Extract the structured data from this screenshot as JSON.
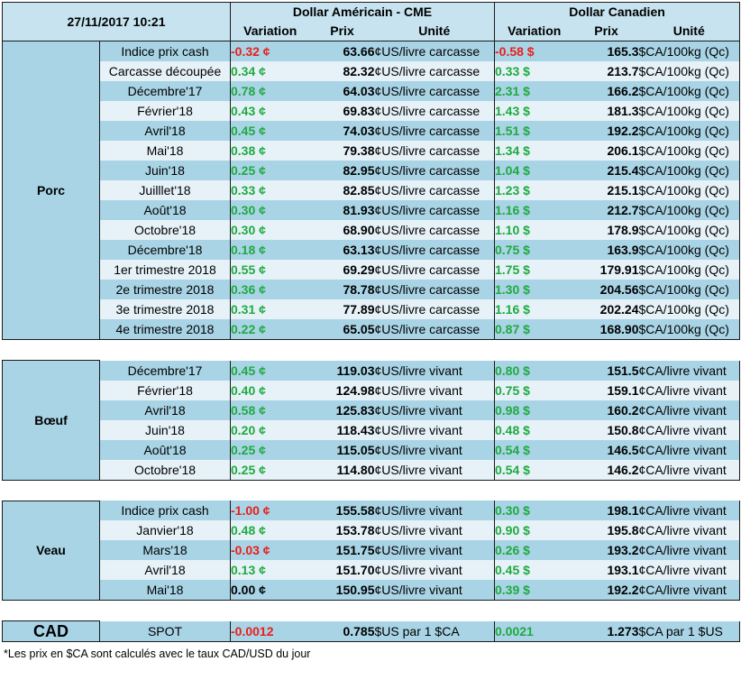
{
  "header": {
    "date": "27/11/2017 10:21",
    "usd_group": "Dollar Américain - CME",
    "cad_group": "Dollar Canadien",
    "col_variation": "Variation",
    "col_prix": "Prix",
    "col_unite": "Unité"
  },
  "sections": [
    {
      "name": "Porc",
      "rows": [
        {
          "label": "Indice prix cash",
          "usd_var": "-0.32 ¢",
          "usd_var_sign": "neg",
          "usd_price": "63.66",
          "usd_unit": "¢US/livre carcasse",
          "cad_var": "-0.58 $",
          "cad_var_sign": "neg",
          "cad_price": "165.3",
          "cad_unit": "$CA/100kg (Qc)"
        },
        {
          "label": "Carcasse découpée",
          "usd_var": "0.34 ¢",
          "usd_var_sign": "pos",
          "usd_price": "82.32",
          "usd_unit": "¢US/livre carcasse",
          "cad_var": "0.33 $",
          "cad_var_sign": "pos",
          "cad_price": "213.7",
          "cad_unit": "$CA/100kg (Qc)"
        },
        {
          "label": "Décembre'17",
          "usd_var": "0.78 ¢",
          "usd_var_sign": "pos",
          "usd_price": "64.03",
          "usd_unit": "¢US/livre carcasse",
          "cad_var": "2.31 $",
          "cad_var_sign": "pos",
          "cad_price": "166.2",
          "cad_unit": "$CA/100kg (Qc)"
        },
        {
          "label": "Février'18",
          "usd_var": "0.43 ¢",
          "usd_var_sign": "pos",
          "usd_price": "69.83",
          "usd_unit": "¢US/livre carcasse",
          "cad_var": "1.43 $",
          "cad_var_sign": "pos",
          "cad_price": "181.3",
          "cad_unit": "$CA/100kg (Qc)"
        },
        {
          "label": "Avril'18",
          "usd_var": "0.45 ¢",
          "usd_var_sign": "pos",
          "usd_price": "74.03",
          "usd_unit": "¢US/livre carcasse",
          "cad_var": "1.51 $",
          "cad_var_sign": "pos",
          "cad_price": "192.2",
          "cad_unit": "$CA/100kg (Qc)"
        },
        {
          "label": "Mai'18",
          "usd_var": "0.38 ¢",
          "usd_var_sign": "pos",
          "usd_price": "79.38",
          "usd_unit": "¢US/livre carcasse",
          "cad_var": "1.34 $",
          "cad_var_sign": "pos",
          "cad_price": "206.1",
          "cad_unit": "$CA/100kg (Qc)"
        },
        {
          "label": "Juin'18",
          "usd_var": "0.25 ¢",
          "usd_var_sign": "pos",
          "usd_price": "82.95",
          "usd_unit": "¢US/livre carcasse",
          "cad_var": "1.04 $",
          "cad_var_sign": "pos",
          "cad_price": "215.4",
          "cad_unit": "$CA/100kg (Qc)"
        },
        {
          "label": "Juilllet'18",
          "usd_var": "0.33 ¢",
          "usd_var_sign": "pos",
          "usd_price": "82.85",
          "usd_unit": "¢US/livre carcasse",
          "cad_var": "1.23 $",
          "cad_var_sign": "pos",
          "cad_price": "215.1",
          "cad_unit": "$CA/100kg (Qc)"
        },
        {
          "label": "Août'18",
          "usd_var": "0.30 ¢",
          "usd_var_sign": "pos",
          "usd_price": "81.93",
          "usd_unit": "¢US/livre carcasse",
          "cad_var": "1.16 $",
          "cad_var_sign": "pos",
          "cad_price": "212.7",
          "cad_unit": "$CA/100kg (Qc)"
        },
        {
          "label": "Octobre'18",
          "usd_var": "0.30 ¢",
          "usd_var_sign": "pos",
          "usd_price": "68.90",
          "usd_unit": "¢US/livre carcasse",
          "cad_var": "1.10 $",
          "cad_var_sign": "pos",
          "cad_price": "178.9",
          "cad_unit": "$CA/100kg (Qc)"
        },
        {
          "label": "Décembre'18",
          "usd_var": "0.18 ¢",
          "usd_var_sign": "pos",
          "usd_price": "63.13",
          "usd_unit": "¢US/livre carcasse",
          "cad_var": "0.75 $",
          "cad_var_sign": "pos",
          "cad_price": "163.9",
          "cad_unit": "$CA/100kg (Qc)"
        },
        {
          "label": "1er trimestre 2018",
          "usd_var": "0.55 ¢",
          "usd_var_sign": "pos",
          "usd_price": "69.29",
          "usd_unit": "¢US/livre carcasse",
          "cad_var": "1.75 $",
          "cad_var_sign": "pos",
          "cad_price": "179.91",
          "cad_unit": "$CA/100kg (Qc)"
        },
        {
          "label": "2e trimestre 2018",
          "usd_var": "0.36 ¢",
          "usd_var_sign": "pos",
          "usd_price": "78.78",
          "usd_unit": "¢US/livre carcasse",
          "cad_var": "1.30 $",
          "cad_var_sign": "pos",
          "cad_price": "204.56",
          "cad_unit": "$CA/100kg (Qc)"
        },
        {
          "label": "3e trimestre 2018",
          "usd_var": "0.31 ¢",
          "usd_var_sign": "pos",
          "usd_price": "77.89",
          "usd_unit": "¢US/livre carcasse",
          "cad_var": "1.16 $",
          "cad_var_sign": "pos",
          "cad_price": "202.24",
          "cad_unit": "$CA/100kg (Qc)"
        },
        {
          "label": "4e trimestre 2018",
          "usd_var": "0.22 ¢",
          "usd_var_sign": "pos",
          "usd_price": "65.05",
          "usd_unit": "¢US/livre carcasse",
          "cad_var": "0.87 $",
          "cad_var_sign": "pos",
          "cad_price": "168.90",
          "cad_unit": "$CA/100kg (Qc)"
        }
      ]
    },
    {
      "name": "Bœuf",
      "rows": [
        {
          "label": "Décembre'17",
          "usd_var": "0.45 ¢",
          "usd_var_sign": "pos",
          "usd_price": "119.03",
          "usd_unit": "¢US/livre vivant",
          "cad_var": "0.80 $",
          "cad_var_sign": "pos",
          "cad_price": "151.5",
          "cad_unit": "¢CA/livre vivant"
        },
        {
          "label": "Février'18",
          "usd_var": "0.40 ¢",
          "usd_var_sign": "pos",
          "usd_price": "124.98",
          "usd_unit": "¢US/livre vivant",
          "cad_var": "0.75 $",
          "cad_var_sign": "pos",
          "cad_price": "159.1",
          "cad_unit": "¢CA/livre vivant"
        },
        {
          "label": "Avril'18",
          "usd_var": "0.58 ¢",
          "usd_var_sign": "pos",
          "usd_price": "125.83",
          "usd_unit": "¢US/livre vivant",
          "cad_var": "0.98 $",
          "cad_var_sign": "pos",
          "cad_price": "160.2",
          "cad_unit": "¢CA/livre vivant"
        },
        {
          "label": "Juin'18",
          "usd_var": "0.20 ¢",
          "usd_var_sign": "pos",
          "usd_price": "118.43",
          "usd_unit": "¢US/livre vivant",
          "cad_var": "0.48 $",
          "cad_var_sign": "pos",
          "cad_price": "150.8",
          "cad_unit": "¢CA/livre vivant"
        },
        {
          "label": "Août'18",
          "usd_var": "0.25 ¢",
          "usd_var_sign": "pos",
          "usd_price": "115.05",
          "usd_unit": "¢US/livre vivant",
          "cad_var": "0.54 $",
          "cad_var_sign": "pos",
          "cad_price": "146.5",
          "cad_unit": "¢CA/livre vivant"
        },
        {
          "label": "Octobre'18",
          "usd_var": "0.25 ¢",
          "usd_var_sign": "pos",
          "usd_price": "114.80",
          "usd_unit": "¢US/livre vivant",
          "cad_var": "0.54 $",
          "cad_var_sign": "pos",
          "cad_price": "146.2",
          "cad_unit": "¢CA/livre vivant"
        }
      ]
    },
    {
      "name": "Veau",
      "rows": [
        {
          "label": "Indice prix cash",
          "usd_var": "-1.00 ¢",
          "usd_var_sign": "neg",
          "usd_price": "155.58",
          "usd_unit": "¢US/livre vivant",
          "cad_var": "0.30 $",
          "cad_var_sign": "pos",
          "cad_price": "198.1",
          "cad_unit": "¢CA/livre vivant"
        },
        {
          "label": "Janvier'18",
          "usd_var": "0.48 ¢",
          "usd_var_sign": "pos",
          "usd_price": "153.78",
          "usd_unit": "¢US/livre vivant",
          "cad_var": "0.90 $",
          "cad_var_sign": "pos",
          "cad_price": "195.8",
          "cad_unit": "¢CA/livre vivant"
        },
        {
          "label": "Mars'18",
          "usd_var": "-0.03 ¢",
          "usd_var_sign": "neg",
          "usd_price": "151.75",
          "usd_unit": "¢US/livre vivant",
          "cad_var": "0.26 $",
          "cad_var_sign": "pos",
          "cad_price": "193.2",
          "cad_unit": "¢CA/livre vivant"
        },
        {
          "label": "Avril'18",
          "usd_var": "0.13 ¢",
          "usd_var_sign": "pos",
          "usd_price": "151.70",
          "usd_unit": "¢US/livre vivant",
          "cad_var": "0.45 $",
          "cad_var_sign": "pos",
          "cad_price": "193.1",
          "cad_unit": "¢CA/livre vivant"
        },
        {
          "label": "Mai'18",
          "usd_var": "0.00 ¢",
          "usd_var_sign": "neu",
          "usd_price": "150.95",
          "usd_unit": "¢US/livre vivant",
          "cad_var": "0.39 $",
          "cad_var_sign": "pos",
          "cad_price": "192.2",
          "cad_unit": "¢CA/livre vivant"
        }
      ]
    }
  ],
  "cad": {
    "name": "CAD",
    "label": "SPOT",
    "usd_var": "-0.0012",
    "usd_var_sign": "neg",
    "usd_price": "0.785",
    "usd_unit": "$US par 1 $CA",
    "cad_var": "0.0021",
    "cad_var_sign": "pos",
    "cad_price": "1.273",
    "cad_unit": "$CA par 1 $US"
  },
  "footnote": "*Les  prix en $CA sont calculés avec le taux CAD/USD du jour",
  "colors": {
    "positive": "#1faa3f",
    "negative": "#e8201c",
    "header_bg": "#c6e3ef",
    "row_dark": "#a9d4e6",
    "row_light": "#e6f2f8"
  }
}
